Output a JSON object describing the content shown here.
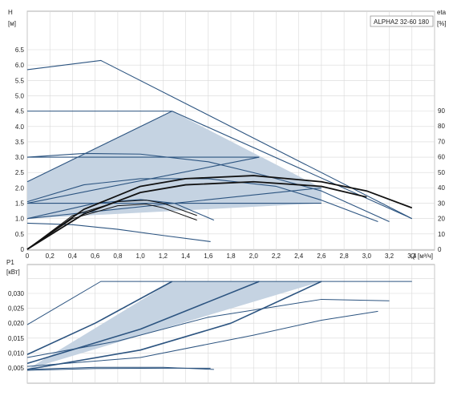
{
  "chart_data": [
    {
      "type": "line",
      "model": "ALPHA2 32-60 180",
      "ylabel": "H",
      "yunit": "[м]",
      "y2label": "eta",
      "y2unit": "[%]",
      "xlabel": "Q",
      "xunit": "[м³/ч]",
      "xlim": [
        0,
        3.6
      ],
      "ylim": [
        0,
        7.0
      ],
      "y2lim": [
        0,
        100
      ],
      "grid": true,
      "xticks": [
        "0",
        "0,2",
        "0,4",
        "0,6",
        "0,8",
        "1,0",
        "1,2",
        "1,4",
        "1,6",
        "1,8",
        "2,0",
        "2,2",
        "2,4",
        "2,6",
        "2,8",
        "3,0",
        "3,2",
        "3,4"
      ],
      "yticks": [
        "0",
        "0.5",
        "1.0",
        "1.5",
        "2.0",
        "2.5",
        "3.0",
        "3.5",
        "4.0",
        "4.5",
        "5.0",
        "5.5",
        "6.0",
        "6.5"
      ],
      "y2ticks": [
        "0",
        "10",
        "20",
        "30",
        "40",
        "50",
        "60",
        "70",
        "80",
        "90"
      ],
      "shaded_region": [
        [
          0,
          1.0
        ],
        [
          0,
          2.2
        ],
        [
          1.28,
          4.5
        ],
        [
          2.6,
          2.0
        ],
        [
          2.6,
          1.5
        ],
        [
          0,
          1.0
        ]
      ],
      "series": [
        {
          "name": "",
          "x": [
            0,
            0.65,
            3.4
          ],
          "y": [
            5.85,
            6.15,
            1.0
          ]
        },
        {
          "name": "",
          "x": [
            0,
            1.28
          ],
          "y": [
            4.5,
            4.5
          ]
        },
        {
          "name": "",
          "x": [
            0,
            2.05
          ],
          "y": [
            3.0,
            3.0
          ]
        },
        {
          "name": "",
          "x": [
            0,
            2.6
          ],
          "y": [
            1.5,
            1.5
          ]
        },
        {
          "name": "",
          "x": [
            0,
            1.28,
            3.4
          ],
          "y": [
            2.2,
            4.5,
            1.0
          ]
        },
        {
          "name": "",
          "x": [
            0,
            2.05
          ],
          "y": [
            1.5,
            3.0
          ]
        },
        {
          "name": "",
          "x": [
            0,
            2.6
          ],
          "y": [
            1.0,
            2.0
          ]
        },
        {
          "name": "",
          "x": [
            0,
            0.5,
            1.0,
            1.6,
            2.05,
            2.6,
            3.2
          ],
          "y": [
            3.0,
            3.12,
            3.1,
            2.85,
            2.45,
            1.9,
            0.9
          ]
        },
        {
          "name": "",
          "x": [
            0,
            0.5,
            1.0,
            1.6,
            2.2,
            2.6,
            3.1
          ],
          "y": [
            1.55,
            2.1,
            2.3,
            2.3,
            2.05,
            1.6,
            0.9
          ]
        },
        {
          "name": "",
          "x": [
            0,
            0.6,
            1.0,
            1.3,
            1.65
          ],
          "y": [
            1.0,
            1.5,
            1.62,
            1.5,
            0.95
          ]
        },
        {
          "name": "",
          "x": [
            0,
            0.4,
            0.8,
            1.2,
            1.62
          ],
          "y": [
            0.85,
            0.8,
            0.65,
            0.45,
            0.25
          ]
        },
        {
          "name": "",
          "x": [
            0,
            0.5,
            1.0,
            1.4,
            2.0,
            2.6,
            3.0,
            3.4
          ],
          "y": [
            0,
            1.3,
            2.05,
            2.3,
            2.4,
            2.2,
            1.9,
            1.35
          ]
        },
        {
          "name": "",
          "x": [
            0,
            0.5,
            1.0,
            1.4,
            2.0,
            2.6,
            3.0
          ],
          "y": [
            0,
            1.15,
            1.85,
            2.1,
            2.2,
            2.05,
            1.7
          ]
        },
        {
          "name": "",
          "x": [
            0,
            0.4,
            0.8,
            1.05,
            1.2,
            1.5
          ],
          "y": [
            0,
            1.1,
            1.55,
            1.6,
            1.5,
            1.1
          ]
        },
        {
          "name": "",
          "x": [
            0,
            0.4,
            0.8,
            1.05,
            1.2,
            1.5
          ],
          "y": [
            0,
            1.0,
            1.42,
            1.47,
            1.35,
            0.95
          ]
        }
      ]
    },
    {
      "type": "line",
      "ylabel": "P1",
      "yunit": "[кВт]",
      "xlim": [
        0,
        3.6
      ],
      "ylim": [
        0,
        0.037
      ],
      "grid": true,
      "yticks": [
        "0,005",
        "0,010",
        "0,015",
        "0,020",
        "0,025",
        "0,030"
      ],
      "shaded_region": [
        [
          0,
          0.0045
        ],
        [
          1.28,
          0.034
        ],
        [
          2.6,
          0.034
        ],
        [
          0.0,
          0.0045
        ]
      ],
      "series": [
        {
          "name": "",
          "x": [
            0,
            0.65,
            3.4
          ],
          "y": [
            0.0195,
            0.034,
            0.034
          ]
        },
        {
          "name": "",
          "x": [
            0,
            0.6,
            1.28
          ],
          "y": [
            0.0095,
            0.02,
            0.034
          ]
        },
        {
          "name": "",
          "x": [
            0,
            1.0,
            2.05
          ],
          "y": [
            0.0065,
            0.018,
            0.034
          ]
        },
        {
          "name": "",
          "x": [
            0,
            1.0,
            1.8,
            2.6
          ],
          "y": [
            0.0045,
            0.011,
            0.02,
            0.034
          ]
        },
        {
          "name": "",
          "x": [
            0,
            0.8,
            1.6,
            2.6,
            3.2
          ],
          "y": [
            0.0085,
            0.014,
            0.022,
            0.028,
            0.0275
          ]
        },
        {
          "name": "",
          "x": [
            0,
            1.0,
            2.0,
            2.6,
            3.1
          ],
          "y": [
            0.0055,
            0.0085,
            0.016,
            0.021,
            0.024
          ]
        },
        {
          "name": "",
          "x": [
            0,
            0.6,
            1.2,
            1.65
          ],
          "y": [
            0.0045,
            0.0052,
            0.0052,
            0.0045
          ]
        },
        {
          "name": "",
          "x": [
            0,
            0.6,
            1.2,
            1.62
          ],
          "y": [
            0.0042,
            0.0048,
            0.0049,
            0.0049
          ]
        }
      ]
    }
  ]
}
